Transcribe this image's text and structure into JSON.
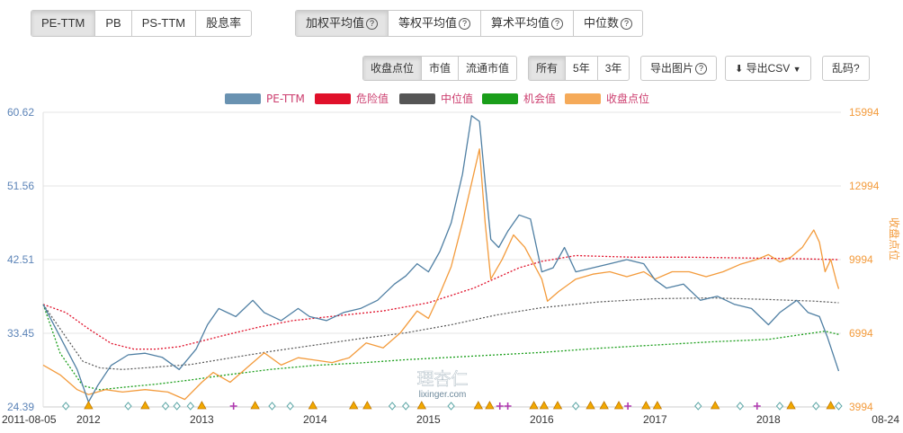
{
  "toolbar": {
    "metric_tabs": [
      "PE-TTM",
      "PB",
      "PS-TTM",
      "股息率"
    ],
    "metric_active": 0,
    "avg_tabs": [
      "加权平均值",
      "等权平均值",
      "算术平均值",
      "中位数"
    ],
    "avg_active": 0,
    "series_tabs": [
      "收盘点位",
      "市值",
      "流通市值"
    ],
    "series_active": 0,
    "range_tabs": [
      "所有",
      "5年",
      "3年"
    ],
    "range_active": 0,
    "export_image": "导出图片",
    "export_csv": "导出CSV",
    "garbled": "乱码?"
  },
  "colors": {
    "pe": "#4f7fa3",
    "danger": "#e0102a",
    "median": "#555555",
    "chance": "#1a9e1a",
    "index": "#f39b3c",
    "left_axis": "#5b83b7",
    "right_axis": "#f39b3c",
    "pe_label": "#cc3d6e",
    "marker_triangle": "#f2a900",
    "marker_diamond": "#5fa8a8",
    "marker_plus": "#b13ab1"
  },
  "chart_data": {
    "type": "line",
    "legend": [
      "PE-TTM",
      "危险值",
      "中位值",
      "机会值",
      "收盘点位"
    ],
    "y_left": {
      "ticks": [
        "60.62",
        "51.56",
        "42.51",
        "33.45",
        "24.39"
      ],
      "range": [
        24.39,
        60.62
      ]
    },
    "y_right": {
      "label": "收盘点位",
      "ticks": [
        "15994",
        "12994",
        "9994",
        "6994",
        "3994"
      ],
      "range": [
        3994,
        15994
      ]
    },
    "x_ticks": [
      "2011-08-05",
      "2012",
      "2013",
      "2014",
      "2015",
      "2016",
      "2017",
      "2018",
      "08-24"
    ],
    "watermark_cn": "理杏仁",
    "watermark_en": "lixinger.com",
    "series": [
      {
        "name": "PE-TTM",
        "axis": "left",
        "points": [
          [
            2011.6,
            37.0
          ],
          [
            2011.75,
            33.0
          ],
          [
            2011.9,
            29.0
          ],
          [
            2012.0,
            25.0
          ],
          [
            2012.08,
            27.0
          ],
          [
            2012.2,
            29.5
          ],
          [
            2012.35,
            30.8
          ],
          [
            2012.5,
            31.0
          ],
          [
            2012.65,
            30.5
          ],
          [
            2012.8,
            29.0
          ],
          [
            2012.95,
            31.5
          ],
          [
            2013.05,
            34.5
          ],
          [
            2013.15,
            36.5
          ],
          [
            2013.3,
            35.5
          ],
          [
            2013.45,
            37.5
          ],
          [
            2013.55,
            36.0
          ],
          [
            2013.7,
            35.0
          ],
          [
            2013.85,
            36.5
          ],
          [
            2013.95,
            35.5
          ],
          [
            2014.1,
            35.0
          ],
          [
            2014.25,
            36.0
          ],
          [
            2014.4,
            36.5
          ],
          [
            2014.55,
            37.5
          ],
          [
            2014.7,
            39.5
          ],
          [
            2014.8,
            40.5
          ],
          [
            2014.9,
            42.0
          ],
          [
            2015.0,
            41.0
          ],
          [
            2015.1,
            43.5
          ],
          [
            2015.2,
            47.0
          ],
          [
            2015.3,
            53.0
          ],
          [
            2015.38,
            60.2
          ],
          [
            2015.45,
            59.5
          ],
          [
            2015.5,
            52.0
          ],
          [
            2015.55,
            45.0
          ],
          [
            2015.62,
            44.0
          ],
          [
            2015.7,
            46.0
          ],
          [
            2015.8,
            48.0
          ],
          [
            2015.9,
            47.5
          ],
          [
            2016.0,
            41.0
          ],
          [
            2016.1,
            41.5
          ],
          [
            2016.2,
            44.0
          ],
          [
            2016.3,
            41.0
          ],
          [
            2016.45,
            41.5
          ],
          [
            2016.6,
            42.0
          ],
          [
            2016.75,
            42.5
          ],
          [
            2016.9,
            42.0
          ],
          [
            2017.0,
            40.0
          ],
          [
            2017.1,
            39.0
          ],
          [
            2017.25,
            39.5
          ],
          [
            2017.4,
            37.5
          ],
          [
            2017.55,
            38.0
          ],
          [
            2017.7,
            37.0
          ],
          [
            2017.85,
            36.5
          ],
          [
            2018.0,
            34.5
          ],
          [
            2018.1,
            36.0
          ],
          [
            2018.25,
            37.5
          ],
          [
            2018.35,
            36.0
          ],
          [
            2018.45,
            35.5
          ],
          [
            2018.52,
            33.0
          ],
          [
            2018.62,
            28.8
          ]
        ]
      },
      {
        "name": "危险值",
        "axis": "left",
        "points": [
          [
            2011.6,
            37.0
          ],
          [
            2011.8,
            36.0
          ],
          [
            2012.0,
            34.0
          ],
          [
            2012.2,
            32.2
          ],
          [
            2012.4,
            31.5
          ],
          [
            2012.6,
            31.5
          ],
          [
            2012.8,
            31.8
          ],
          [
            2013.0,
            32.5
          ],
          [
            2013.2,
            33.2
          ],
          [
            2013.5,
            34.2
          ],
          [
            2013.8,
            35.0
          ],
          [
            2014.2,
            35.6
          ],
          [
            2014.6,
            36.2
          ],
          [
            2015.0,
            37.2
          ],
          [
            2015.4,
            39.0
          ],
          [
            2015.8,
            41.5
          ],
          [
            2016.0,
            42.3
          ],
          [
            2016.3,
            43.0
          ],
          [
            2016.8,
            42.8
          ],
          [
            2017.3,
            42.8
          ],
          [
            2017.8,
            42.7
          ],
          [
            2018.3,
            42.6
          ],
          [
            2018.62,
            42.5
          ]
        ]
      },
      {
        "name": "中位值",
        "axis": "left",
        "points": [
          [
            2011.6,
            37.0
          ],
          [
            2011.8,
            33.0
          ],
          [
            2011.95,
            30.0
          ],
          [
            2012.1,
            29.2
          ],
          [
            2012.3,
            29.0
          ],
          [
            2012.6,
            29.3
          ],
          [
            2012.9,
            29.6
          ],
          [
            2013.2,
            30.3
          ],
          [
            2013.6,
            31.2
          ],
          [
            2014.0,
            32.0
          ],
          [
            2014.4,
            32.8
          ],
          [
            2014.8,
            33.5
          ],
          [
            2015.2,
            34.5
          ],
          [
            2015.6,
            35.7
          ],
          [
            2016.0,
            36.6
          ],
          [
            2016.5,
            37.3
          ],
          [
            2017.0,
            37.7
          ],
          [
            2017.5,
            37.8
          ],
          [
            2018.0,
            37.6
          ],
          [
            2018.4,
            37.4
          ],
          [
            2018.62,
            37.2
          ]
        ]
      },
      {
        "name": "机会值",
        "axis": "left",
        "points": [
          [
            2011.6,
            37.0
          ],
          [
            2011.75,
            31.0
          ],
          [
            2011.95,
            27.0
          ],
          [
            2012.1,
            26.5
          ],
          [
            2012.3,
            26.8
          ],
          [
            2012.6,
            27.2
          ],
          [
            2012.9,
            27.7
          ],
          [
            2013.2,
            28.3
          ],
          [
            2013.6,
            29.0
          ],
          [
            2014.0,
            29.5
          ],
          [
            2014.4,
            29.8
          ],
          [
            2014.8,
            30.2
          ],
          [
            2015.2,
            30.5
          ],
          [
            2015.6,
            30.8
          ],
          [
            2016.0,
            31.1
          ],
          [
            2016.5,
            31.6
          ],
          [
            2017.0,
            32.0
          ],
          [
            2017.5,
            32.4
          ],
          [
            2018.0,
            32.7
          ],
          [
            2018.3,
            33.3
          ],
          [
            2018.5,
            33.7
          ],
          [
            2018.62,
            33.3
          ]
        ]
      },
      {
        "name": "收盘点位",
        "axis": "right",
        "points": [
          [
            2011.6,
            5700
          ],
          [
            2011.75,
            5300
          ],
          [
            2011.9,
            4700
          ],
          [
            2012.0,
            4500
          ],
          [
            2012.15,
            4700
          ],
          [
            2012.3,
            4600
          ],
          [
            2012.5,
            4700
          ],
          [
            2012.7,
            4600
          ],
          [
            2012.85,
            4300
          ],
          [
            2013.0,
            5000
          ],
          [
            2013.1,
            5400
          ],
          [
            2013.25,
            5000
          ],
          [
            2013.4,
            5600
          ],
          [
            2013.55,
            6200
          ],
          [
            2013.7,
            5700
          ],
          [
            2013.85,
            6000
          ],
          [
            2014.0,
            5900
          ],
          [
            2014.15,
            5800
          ],
          [
            2014.3,
            6000
          ],
          [
            2014.45,
            6600
          ],
          [
            2014.6,
            6400
          ],
          [
            2014.75,
            7000
          ],
          [
            2014.9,
            7900
          ],
          [
            2015.0,
            7600
          ],
          [
            2015.1,
            8600
          ],
          [
            2015.2,
            9700
          ],
          [
            2015.3,
            11500
          ],
          [
            2015.4,
            13500
          ],
          [
            2015.45,
            14500
          ],
          [
            2015.5,
            11500
          ],
          [
            2015.55,
            9200
          ],
          [
            2015.65,
            10000
          ],
          [
            2015.75,
            11000
          ],
          [
            2015.85,
            10500
          ],
          [
            2016.0,
            9200
          ],
          [
            2016.05,
            8300
          ],
          [
            2016.15,
            8700
          ],
          [
            2016.3,
            9200
          ],
          [
            2016.45,
            9400
          ],
          [
            2016.6,
            9500
          ],
          [
            2016.75,
            9300
          ],
          [
            2016.9,
            9500
          ],
          [
            2017.0,
            9200
          ],
          [
            2017.15,
            9500
          ],
          [
            2017.3,
            9500
          ],
          [
            2017.45,
            9300
          ],
          [
            2017.6,
            9500
          ],
          [
            2017.75,
            9800
          ],
          [
            2017.9,
            10000
          ],
          [
            2018.0,
            10200
          ],
          [
            2018.1,
            9900
          ],
          [
            2018.2,
            10100
          ],
          [
            2018.3,
            10500
          ],
          [
            2018.4,
            11200
          ],
          [
            2018.45,
            10700
          ],
          [
            2018.5,
            9500
          ],
          [
            2018.55,
            10000
          ],
          [
            2018.6,
            9100
          ],
          [
            2018.62,
            8800
          ]
        ]
      }
    ],
    "markers": [
      {
        "type": "diamond",
        "x": 2011.8
      },
      {
        "type": "triangle",
        "x": 2012.0
      },
      {
        "type": "diamond",
        "x": 2012.35
      },
      {
        "type": "triangle",
        "x": 2012.5
      },
      {
        "type": "diamond",
        "x": 2012.68
      },
      {
        "type": "diamond",
        "x": 2012.78
      },
      {
        "type": "diamond",
        "x": 2012.9
      },
      {
        "type": "triangle",
        "x": 2013.0
      },
      {
        "type": "plus",
        "x": 2013.28
      },
      {
        "type": "triangle",
        "x": 2013.47
      },
      {
        "type": "diamond",
        "x": 2013.62
      },
      {
        "type": "diamond",
        "x": 2013.78
      },
      {
        "type": "triangle",
        "x": 2013.98
      },
      {
        "type": "triangle",
        "x": 2014.34
      },
      {
        "type": "triangle",
        "x": 2014.46
      },
      {
        "type": "diamond",
        "x": 2014.68
      },
      {
        "type": "diamond",
        "x": 2014.8
      },
      {
        "type": "triangle",
        "x": 2014.94
      },
      {
        "type": "diamond",
        "x": 2015.2
      },
      {
        "type": "triangle",
        "x": 2015.44
      },
      {
        "type": "triangle",
        "x": 2015.54
      },
      {
        "type": "plus",
        "x": 2015.63
      },
      {
        "type": "plus",
        "x": 2015.7
      },
      {
        "type": "triangle",
        "x": 2015.93
      },
      {
        "type": "triangle",
        "x": 2016.02
      },
      {
        "type": "triangle",
        "x": 2016.14
      },
      {
        "type": "diamond",
        "x": 2016.3
      },
      {
        "type": "triangle",
        "x": 2016.43
      },
      {
        "type": "triangle",
        "x": 2016.55
      },
      {
        "type": "triangle",
        "x": 2016.68
      },
      {
        "type": "plus",
        "x": 2016.76
      },
      {
        "type": "triangle",
        "x": 2016.92
      },
      {
        "type": "triangle",
        "x": 2017.02
      },
      {
        "type": "diamond",
        "x": 2017.38
      },
      {
        "type": "triangle",
        "x": 2017.53
      },
      {
        "type": "diamond",
        "x": 2017.75
      },
      {
        "type": "plus",
        "x": 2017.9
      },
      {
        "type": "diamond",
        "x": 2018.1
      },
      {
        "type": "triangle",
        "x": 2018.2
      },
      {
        "type": "diamond",
        "x": 2018.42
      },
      {
        "type": "triangle",
        "x": 2018.55
      },
      {
        "type": "diamond",
        "x": 2018.62
      }
    ]
  }
}
